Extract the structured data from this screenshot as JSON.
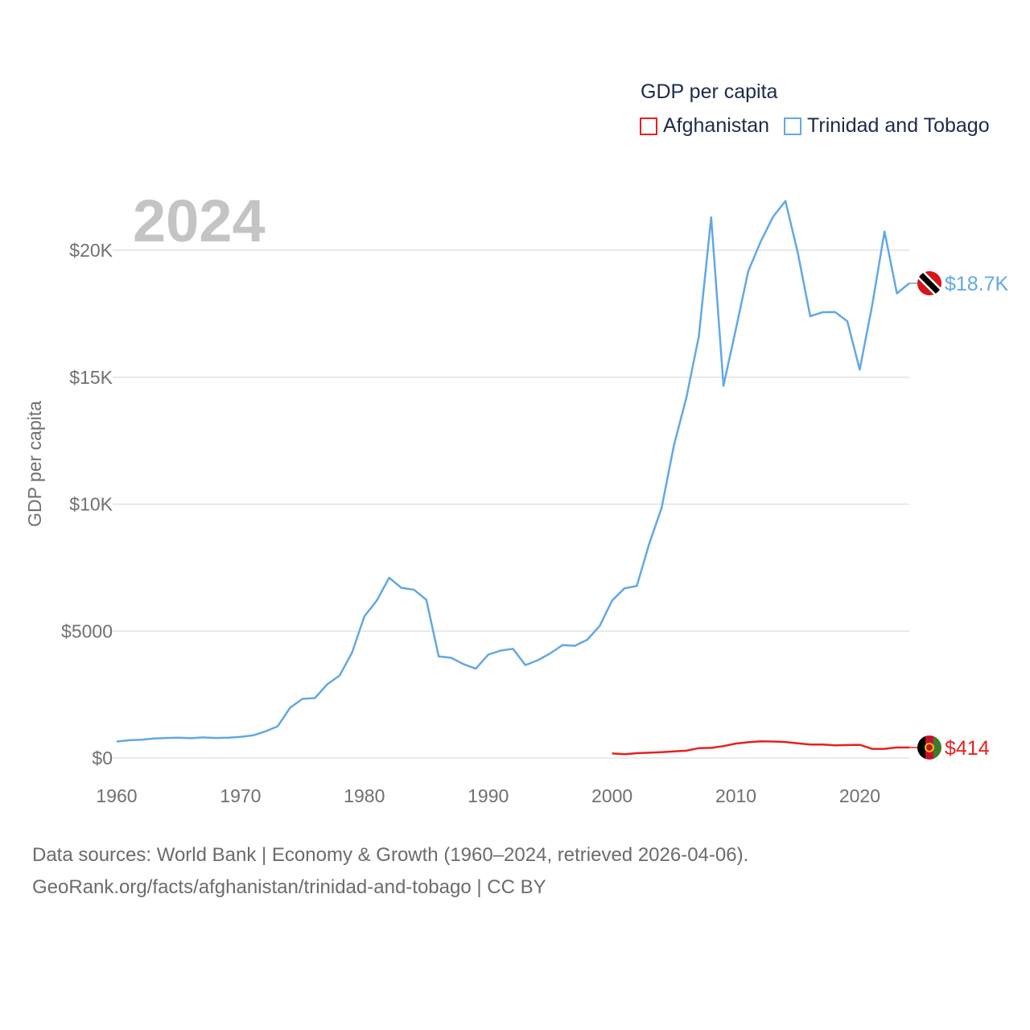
{
  "legend": {
    "title": "GDP per capita",
    "items": [
      {
        "name": "Afghanistan",
        "color": "#e8201d"
      },
      {
        "name": "Trinidad and Tobago",
        "color": "#62a8e5"
      }
    ]
  },
  "year_stamp": "2024",
  "footer": {
    "line1": "Data sources: World Bank | Economy & Growth (1960–2024, retrieved 2026-04-06).",
    "line2": "GeoRank.org/facts/afghanistan/trinidad-and-tobago | CC BY"
  },
  "chart_data": {
    "type": "line",
    "title": "GDP per capita",
    "xlabel": "",
    "ylabel": "GDP per capita",
    "xlim": [
      1960,
      2024
    ],
    "ylim": [
      0,
      20000
    ],
    "x_ticks": [
      1960,
      1970,
      1980,
      1990,
      2000,
      2010,
      2020
    ],
    "x_tick_labels": [
      "1960",
      "1970",
      "1980",
      "1990",
      "2000",
      "2010",
      "2020"
    ],
    "y_ticks": [
      0,
      5000,
      10000,
      15000,
      20000
    ],
    "y_tick_labels": [
      "$0",
      "$5000",
      "$10K",
      "$15K",
      "$20K"
    ],
    "grid": true,
    "legend_position": "top-right",
    "series": [
      {
        "name": "Trinidad and Tobago",
        "color": "#62a8e5",
        "end_label": "$18.7K",
        "flag_icon": "trinidad-and-tobago-flag-icon",
        "x": [
          1960,
          1961,
          1962,
          1963,
          1964,
          1965,
          1966,
          1967,
          1968,
          1969,
          1970,
          1971,
          1972,
          1973,
          1974,
          1975,
          1976,
          1977,
          1978,
          1979,
          1980,
          1981,
          1982,
          1983,
          1984,
          1985,
          1986,
          1987,
          1988,
          1989,
          1990,
          1991,
          1992,
          1993,
          1994,
          1995,
          1996,
          1997,
          1998,
          1999,
          2000,
          2001,
          2002,
          2003,
          2004,
          2005,
          2006,
          2007,
          2008,
          2009,
          2010,
          2011,
          2012,
          2013,
          2014,
          2015,
          2016,
          2017,
          2018,
          2019,
          2020,
          2021,
          2022,
          2023,
          2024
        ],
        "values": [
          650,
          700,
          720,
          770,
          790,
          800,
          780,
          810,
          790,
          800,
          830,
          890,
          1050,
          1250,
          1980,
          2330,
          2360,
          2900,
          3250,
          4150,
          5580,
          6200,
          7100,
          6700,
          6630,
          6230,
          4000,
          3950,
          3700,
          3520,
          4070,
          4230,
          4300,
          3660,
          3850,
          4120,
          4450,
          4420,
          4660,
          5200,
          6200,
          6680,
          6780,
          8440,
          9850,
          12330,
          14200,
          16600,
          21300,
          14660,
          16900,
          19180,
          20340,
          21320,
          21940,
          19890,
          17400,
          17560,
          17570,
          17200,
          15300,
          17820,
          20740,
          18300,
          18700
        ]
      },
      {
        "name": "Afghanistan",
        "color": "#e8201d",
        "end_label": "$414",
        "flag_icon": "afghanistan-flag-icon",
        "x": [
          2000,
          2001,
          2002,
          2003,
          2004,
          2005,
          2006,
          2007,
          2008,
          2009,
          2010,
          2011,
          2012,
          2013,
          2014,
          2015,
          2016,
          2017,
          2018,
          2019,
          2020,
          2021,
          2022,
          2023,
          2024
        ],
        "values": [
          180,
          150,
          190,
          210,
          230,
          260,
          290,
          390,
          400,
          470,
          570,
          620,
          660,
          650,
          630,
          580,
          530,
          530,
          500,
          510,
          520,
          360,
          360,
          414,
          414
        ]
      }
    ]
  }
}
